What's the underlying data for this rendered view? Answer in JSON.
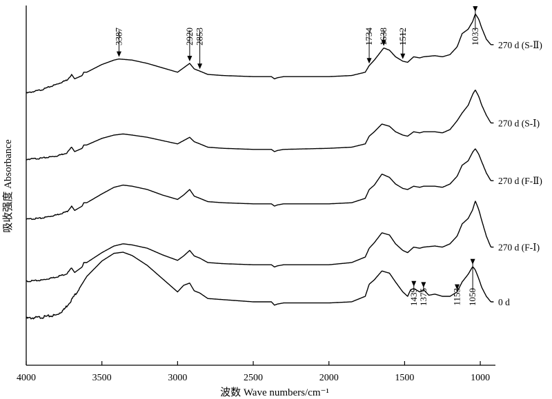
{
  "chart_data": {
    "type": "line",
    "xlabel": "波数 Wave numbers/cm⁻¹",
    "ylabel": "吸收强度 Absorbance",
    "x_ticks": [
      4000,
      3500,
      3000,
      2500,
      2000,
      1500,
      1000
    ],
    "xlim": [
      4000,
      900
    ],
    "x_reversed": true,
    "grid": false,
    "series": [
      {
        "name": "270 d (S-Ⅱ)",
        "values": [
          [
            4000,
            0.03
          ],
          [
            3900,
            0.06
          ],
          [
            3800,
            0.11
          ],
          [
            3730,
            0.15
          ],
          [
            3700,
            0.2
          ],
          [
            3680,
            0.16
          ],
          [
            3630,
            0.19
          ],
          [
            3620,
            0.22
          ],
          [
            3600,
            0.22
          ],
          [
            3500,
            0.29
          ],
          [
            3420,
            0.33
          ],
          [
            3387,
            0.34
          ],
          [
            3300,
            0.33
          ],
          [
            3200,
            0.3
          ],
          [
            3100,
            0.26
          ],
          [
            3000,
            0.22
          ],
          [
            2960,
            0.26
          ],
          [
            2920,
            0.3
          ],
          [
            2890,
            0.25
          ],
          [
            2853,
            0.23
          ],
          [
            2800,
            0.2
          ],
          [
            2700,
            0.19
          ],
          [
            2500,
            0.18
          ],
          [
            2380,
            0.18
          ],
          [
            2360,
            0.16
          ],
          [
            2340,
            0.17
          ],
          [
            2300,
            0.18
          ],
          [
            2000,
            0.18
          ],
          [
            1850,
            0.19
          ],
          [
            1760,
            0.22
          ],
          [
            1734,
            0.28
          ],
          [
            1700,
            0.33
          ],
          [
            1638,
            0.44
          ],
          [
            1600,
            0.42
          ],
          [
            1560,
            0.36
          ],
          [
            1512,
            0.32
          ],
          [
            1480,
            0.31
          ],
          [
            1440,
            0.36
          ],
          [
            1400,
            0.35
          ],
          [
            1375,
            0.36
          ],
          [
            1300,
            0.37
          ],
          [
            1250,
            0.36
          ],
          [
            1200,
            0.38
          ],
          [
            1153,
            0.45
          ],
          [
            1120,
            0.57
          ],
          [
            1080,
            0.61
          ],
          [
            1050,
            0.68
          ],
          [
            1033,
            0.75
          ],
          [
            1010,
            0.7
          ],
          [
            990,
            0.62
          ],
          [
            960,
            0.52
          ],
          [
            930,
            0.47
          ],
          [
            910,
            0.47
          ]
        ]
      },
      {
        "name": "270 d (S-Ⅰ)",
        "values": [
          [
            4000,
            0.03
          ],
          [
            3900,
            0.04
          ],
          [
            3800,
            0.06
          ],
          [
            3730,
            0.09
          ],
          [
            3700,
            0.14
          ],
          [
            3680,
            0.1
          ],
          [
            3630,
            0.13
          ],
          [
            3620,
            0.16
          ],
          [
            3600,
            0.16
          ],
          [
            3500,
            0.22
          ],
          [
            3420,
            0.25
          ],
          [
            3360,
            0.26
          ],
          [
            3300,
            0.25
          ],
          [
            3200,
            0.23
          ],
          [
            3100,
            0.2
          ],
          [
            3000,
            0.17
          ],
          [
            2960,
            0.2
          ],
          [
            2920,
            0.23
          ],
          [
            2890,
            0.19
          ],
          [
            2853,
            0.17
          ],
          [
            2800,
            0.14
          ],
          [
            2700,
            0.13
          ],
          [
            2500,
            0.12
          ],
          [
            2380,
            0.12
          ],
          [
            2360,
            0.1
          ],
          [
            2340,
            0.11
          ],
          [
            2300,
            0.12
          ],
          [
            2000,
            0.13
          ],
          [
            1850,
            0.14
          ],
          [
            1760,
            0.17
          ],
          [
            1734,
            0.24
          ],
          [
            1700,
            0.28
          ],
          [
            1650,
            0.35
          ],
          [
            1600,
            0.33
          ],
          [
            1560,
            0.28
          ],
          [
            1512,
            0.25
          ],
          [
            1480,
            0.24
          ],
          [
            1440,
            0.28
          ],
          [
            1400,
            0.27
          ],
          [
            1375,
            0.28
          ],
          [
            1300,
            0.28
          ],
          [
            1250,
            0.27
          ],
          [
            1200,
            0.3
          ],
          [
            1153,
            0.38
          ],
          [
            1120,
            0.45
          ],
          [
            1080,
            0.52
          ],
          [
            1050,
            0.62
          ],
          [
            1033,
            0.66
          ],
          [
            1010,
            0.6
          ],
          [
            990,
            0.52
          ],
          [
            960,
            0.43
          ],
          [
            930,
            0.36
          ],
          [
            910,
            0.36
          ]
        ]
      },
      {
        "name": "270 d (F-Ⅱ)",
        "values": [
          [
            4000,
            0.03
          ],
          [
            3900,
            0.04
          ],
          [
            3800,
            0.07
          ],
          [
            3730,
            0.1
          ],
          [
            3700,
            0.15
          ],
          [
            3680,
            0.11
          ],
          [
            3630,
            0.15
          ],
          [
            3620,
            0.18
          ],
          [
            3600,
            0.18
          ],
          [
            3500,
            0.26
          ],
          [
            3420,
            0.32
          ],
          [
            3360,
            0.34
          ],
          [
            3300,
            0.33
          ],
          [
            3200,
            0.3
          ],
          [
            3100,
            0.25
          ],
          [
            3000,
            0.21
          ],
          [
            2960,
            0.25
          ],
          [
            2920,
            0.3
          ],
          [
            2890,
            0.24
          ],
          [
            2853,
            0.22
          ],
          [
            2800,
            0.19
          ],
          [
            2700,
            0.18
          ],
          [
            2500,
            0.17
          ],
          [
            2380,
            0.17
          ],
          [
            2360,
            0.15
          ],
          [
            2340,
            0.16
          ],
          [
            2300,
            0.17
          ],
          [
            2000,
            0.17
          ],
          [
            1850,
            0.18
          ],
          [
            1760,
            0.22
          ],
          [
            1734,
            0.3
          ],
          [
            1700,
            0.34
          ],
          [
            1650,
            0.44
          ],
          [
            1600,
            0.41
          ],
          [
            1560,
            0.35
          ],
          [
            1512,
            0.31
          ],
          [
            1480,
            0.3
          ],
          [
            1440,
            0.33
          ],
          [
            1400,
            0.32
          ],
          [
            1375,
            0.33
          ],
          [
            1300,
            0.33
          ],
          [
            1250,
            0.32
          ],
          [
            1200,
            0.35
          ],
          [
            1153,
            0.42
          ],
          [
            1120,
            0.52
          ],
          [
            1080,
            0.56
          ],
          [
            1050,
            0.64
          ],
          [
            1033,
            0.67
          ],
          [
            1010,
            0.62
          ],
          [
            990,
            0.55
          ],
          [
            960,
            0.45
          ],
          [
            930,
            0.38
          ],
          [
            910,
            0.38
          ]
        ]
      },
      {
        "name": "270 d (F-Ⅰ)",
        "values": [
          [
            4000,
            0.03
          ],
          [
            3900,
            0.04
          ],
          [
            3800,
            0.07
          ],
          [
            3730,
            0.1
          ],
          [
            3700,
            0.15
          ],
          [
            3680,
            0.11
          ],
          [
            3630,
            0.16
          ],
          [
            3620,
            0.2
          ],
          [
            3600,
            0.2
          ],
          [
            3500,
            0.29
          ],
          [
            3420,
            0.35
          ],
          [
            3360,
            0.37
          ],
          [
            3300,
            0.36
          ],
          [
            3200,
            0.33
          ],
          [
            3100,
            0.27
          ],
          [
            3000,
            0.22
          ],
          [
            2960,
            0.26
          ],
          [
            2920,
            0.31
          ],
          [
            2890,
            0.26
          ],
          [
            2853,
            0.24
          ],
          [
            2800,
            0.2
          ],
          [
            2700,
            0.19
          ],
          [
            2500,
            0.18
          ],
          [
            2380,
            0.18
          ],
          [
            2360,
            0.16
          ],
          [
            2340,
            0.17
          ],
          [
            2300,
            0.18
          ],
          [
            2000,
            0.18
          ],
          [
            1850,
            0.2
          ],
          [
            1760,
            0.25
          ],
          [
            1734,
            0.33
          ],
          [
            1700,
            0.38
          ],
          [
            1650,
            0.47
          ],
          [
            1600,
            0.45
          ],
          [
            1560,
            0.37
          ],
          [
            1512,
            0.31
          ],
          [
            1480,
            0.29
          ],
          [
            1440,
            0.34
          ],
          [
            1400,
            0.33
          ],
          [
            1375,
            0.34
          ],
          [
            1300,
            0.35
          ],
          [
            1250,
            0.34
          ],
          [
            1200,
            0.37
          ],
          [
            1153,
            0.44
          ],
          [
            1120,
            0.55
          ],
          [
            1080,
            0.6
          ],
          [
            1050,
            0.68
          ],
          [
            1033,
            0.76
          ],
          [
            1010,
            0.68
          ],
          [
            990,
            0.58
          ],
          [
            960,
            0.44
          ],
          [
            930,
            0.34
          ],
          [
            910,
            0.34
          ]
        ]
      },
      {
        "name": "0 d",
        "values": [
          [
            4000,
            0.0
          ],
          [
            3900,
            0.01
          ],
          [
            3800,
            0.03
          ],
          [
            3750,
            0.08
          ],
          [
            3700,
            0.17
          ],
          [
            3650,
            0.27
          ],
          [
            3600,
            0.38
          ],
          [
            3500,
            0.52
          ],
          [
            3420,
            0.59
          ],
          [
            3360,
            0.6
          ],
          [
            3300,
            0.57
          ],
          [
            3200,
            0.48
          ],
          [
            3100,
            0.36
          ],
          [
            3000,
            0.24
          ],
          [
            2960,
            0.3
          ],
          [
            2920,
            0.32
          ],
          [
            2890,
            0.25
          ],
          [
            2853,
            0.23
          ],
          [
            2800,
            0.18
          ],
          [
            2700,
            0.17
          ],
          [
            2500,
            0.15
          ],
          [
            2380,
            0.15
          ],
          [
            2360,
            0.12
          ],
          [
            2340,
            0.13
          ],
          [
            2300,
            0.14
          ],
          [
            2000,
            0.14
          ],
          [
            1850,
            0.15
          ],
          [
            1760,
            0.2
          ],
          [
            1734,
            0.31
          ],
          [
            1700,
            0.35
          ],
          [
            1650,
            0.43
          ],
          [
            1600,
            0.41
          ],
          [
            1560,
            0.33
          ],
          [
            1512,
            0.24
          ],
          [
            1480,
            0.2
          ],
          [
            1460,
            0.26
          ],
          [
            1439,
            0.27
          ],
          [
            1400,
            0.24
          ],
          [
            1375,
            0.26
          ],
          [
            1340,
            0.21
          ],
          [
            1300,
            0.22
          ],
          [
            1250,
            0.2
          ],
          [
            1200,
            0.2
          ],
          [
            1153,
            0.24
          ],
          [
            1120,
            0.33
          ],
          [
            1080,
            0.4
          ],
          [
            1050,
            0.47
          ],
          [
            1033,
            0.44
          ],
          [
            1010,
            0.36
          ],
          [
            990,
            0.28
          ],
          [
            960,
            0.2
          ],
          [
            930,
            0.15
          ],
          [
            910,
            0.15
          ]
        ]
      }
    ],
    "annotations": [
      {
        "text": "3387",
        "x": 3387,
        "series": 0
      },
      {
        "text": "2920",
        "x": 2920,
        "series": 0
      },
      {
        "text": "2853",
        "x": 2853,
        "series": 0
      },
      {
        "text": "1734",
        "x": 1734,
        "series": 0
      },
      {
        "text": "1638",
        "x": 1638,
        "series": 0
      },
      {
        "text": "1512",
        "x": 1512,
        "series": 0
      },
      {
        "text": "1033",
        "x": 1033,
        "series": 0
      },
      {
        "text": "1439",
        "x": 1439,
        "series": 4
      },
      {
        "text": "1375",
        "x": 1375,
        "series": 4
      },
      {
        "text": "1153",
        "x": 1153,
        "series": 4
      },
      {
        "text": "1050",
        "x": 1050,
        "series": 4
      }
    ]
  }
}
